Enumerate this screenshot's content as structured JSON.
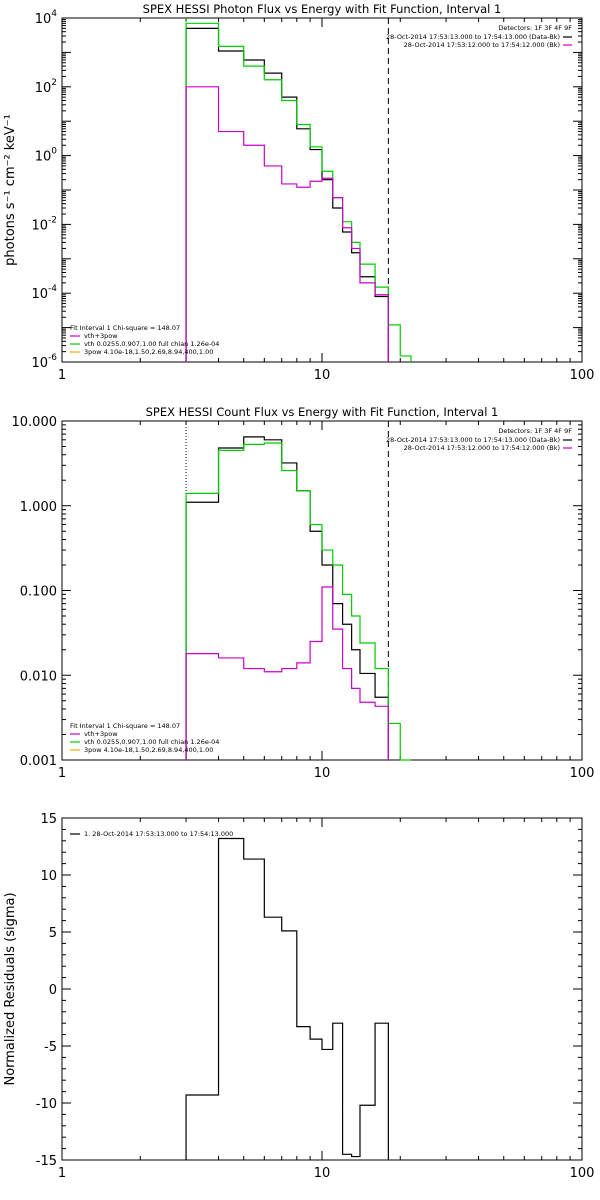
{
  "chart_data": [
    {
      "type": "line",
      "title": "SPEX HESSI Photon Flux vs Energy with Fit Function, Interval 1",
      "xlabel": "",
      "ylabel": "photons s⁻¹ cm⁻² keV⁻¹",
      "xscale": "log",
      "yscale": "log",
      "xlim": [
        1,
        100
      ],
      "ylim": [
        1e-06,
        10000
      ],
      "x_ticks": [
        {
          "v": 1,
          "label": "1"
        },
        {
          "v": 10,
          "label": "10"
        },
        {
          "v": 100,
          "label": "100"
        }
      ],
      "y_ticks": [
        {
          "v": 10000,
          "base": "10",
          "exp": "4"
        },
        {
          "v": 100,
          "base": "10",
          "exp": "2"
        },
        {
          "v": 1,
          "base": "10",
          "exp": "0"
        },
        {
          "v": 0.01,
          "base": "10",
          "exp": "-2"
        },
        {
          "v": 0.0001,
          "base": "10",
          "exp": "-4"
        },
        {
          "v": 1e-06,
          "base": "10",
          "exp": "-6"
        }
      ],
      "vlines": [
        {
          "x": 3,
          "style": "dotted",
          "color": "#00cc00"
        },
        {
          "x": 18,
          "style": "dashed",
          "color": "#000000"
        }
      ],
      "series": [
        {
          "color": "#000000",
          "steps": [
            [
              3,
              4,
              5000
            ],
            [
              4,
              5,
              1100
            ],
            [
              5,
              6,
              600
            ],
            [
              6,
              7,
              250
            ],
            [
              7,
              8,
              50
            ],
            [
              8,
              9,
              6
            ],
            [
              9,
              10,
              1.5
            ],
            [
              10,
              11,
              0.2
            ],
            [
              11,
              12,
              0.03
            ],
            [
              12,
              13,
              0.006
            ],
            [
              13,
              14,
              0.0015
            ],
            [
              14,
              16,
              0.0003
            ],
            [
              16,
              18,
              8e-05
            ]
          ]
        },
        {
          "color": "#00cc00",
          "steps": [
            [
              3,
              4,
              7000
            ],
            [
              4,
              5,
              1500
            ],
            [
              5,
              6,
              400
            ],
            [
              6,
              7,
              160
            ],
            [
              7,
              8,
              40
            ],
            [
              8,
              9,
              8
            ],
            [
              9,
              10,
              1.8
            ],
            [
              10,
              11,
              0.35
            ],
            [
              11,
              12,
              0.06
            ],
            [
              12,
              13,
              0.012
            ],
            [
              13,
              14,
              0.003
            ],
            [
              14,
              16,
              0.0007
            ],
            [
              16,
              18,
              0.00015
            ],
            [
              18,
              20,
              1.2e-05
            ],
            [
              20,
              22,
              1.5e-06
            ]
          ]
        },
        {
          "color": "#cc00cc",
          "steps": [
            [
              3,
              4,
              100
            ],
            [
              4,
              5,
              5
            ],
            [
              5,
              6,
              2
            ],
            [
              6,
              7,
              0.5
            ],
            [
              7,
              8,
              0.15
            ],
            [
              8,
              9,
              0.12
            ],
            [
              9,
              10,
              0.18
            ],
            [
              10,
              11,
              0.22
            ],
            [
              11,
              12,
              0.06
            ],
            [
              12,
              13,
              0.008
            ],
            [
              13,
              14,
              0.002
            ],
            [
              14,
              16,
              0.0002
            ],
            [
              16,
              18,
              9e-05
            ]
          ]
        }
      ],
      "legend_right": {
        "title": "Detectors: 1F 3F 4F 9F",
        "entries": [
          {
            "label": "28-Oct-2014 17:53:13.000 to 17:54:13.000 (Data-Bk)",
            "color": "#000000"
          },
          {
            "label": "28-Oct-2014 17:53:12.000 to 17:54:12.000 (Bk)",
            "color": "#cc00cc"
          }
        ]
      },
      "legend_left": {
        "title": "Fit Interval 1    Chi-square = 148.07",
        "entries": [
          {
            "label": "vth+3pow",
            "color": "#cc00cc"
          },
          {
            "label": "vth 0.0255,0.907,1.00  full chian 1.26e-04",
            "color": "#00cc00"
          },
          {
            "label": "3pow 4.10e-18,1.50,2.69,8.94,400,1.00",
            "color": "#e8b000"
          }
        ]
      }
    },
    {
      "type": "line",
      "title": "SPEX HESSI Count Flux vs Energy with Fit Function, Interval 1",
      "xlabel": "",
      "ylabel": "",
      "xscale": "log",
      "yscale": "log",
      "xlim": [
        1,
        100
      ],
      "ylim": [
        0.001,
        10
      ],
      "x_ticks": [
        {
          "v": 1,
          "label": "1"
        },
        {
          "v": 10,
          "label": "10"
        },
        {
          "v": 100,
          "label": "100"
        }
      ],
      "y_ticks": [
        {
          "v": 10,
          "label": "10.000"
        },
        {
          "v": 1,
          "label": "1.000"
        },
        {
          "v": 0.1,
          "label": "0.100"
        },
        {
          "v": 0.01,
          "label": "0.010"
        },
        {
          "v": 0.001,
          "label": "0.001"
        }
      ],
      "vlines": [
        {
          "x": 3,
          "style": "dotted",
          "color": "#000000"
        },
        {
          "x": 18,
          "style": "dashed",
          "color": "#000000"
        }
      ],
      "series": [
        {
          "color": "#000000",
          "steps": [
            [
              3,
              4,
              1.1
            ],
            [
              4,
              5,
              4.8
            ],
            [
              5,
              6,
              6.5
            ],
            [
              6,
              7,
              6.0
            ],
            [
              7,
              8,
              3.2
            ],
            [
              8,
              9,
              1.5
            ],
            [
              9,
              10,
              0.5
            ],
            [
              10,
              11,
              0.2
            ],
            [
              11,
              12,
              0.07
            ],
            [
              12,
              13,
              0.04
            ],
            [
              13,
              14,
              0.02
            ],
            [
              14,
              16,
              0.0105
            ],
            [
              16,
              18,
              0.0055
            ]
          ]
        },
        {
          "color": "#00cc00",
          "steps": [
            [
              3,
              4,
              1.4
            ],
            [
              4,
              5,
              4.5
            ],
            [
              5,
              6,
              5.3
            ],
            [
              6,
              7,
              5.5
            ],
            [
              7,
              8,
              2.6
            ],
            [
              8,
              9,
              1.5
            ],
            [
              9,
              10,
              0.6
            ],
            [
              10,
              11,
              0.3
            ],
            [
              11,
              12,
              0.2
            ],
            [
              12,
              13,
              0.09
            ],
            [
              13,
              14,
              0.05
            ],
            [
              14,
              16,
              0.024
            ],
            [
              16,
              18,
              0.012
            ],
            [
              18,
              20,
              0.0027
            ],
            [
              20,
              22,
              0.001
            ]
          ]
        },
        {
          "color": "#cc00cc",
          "steps": [
            [
              3,
              4,
              0.018
            ],
            [
              4,
              5,
              0.016
            ],
            [
              5,
              6,
              0.012
            ],
            [
              6,
              7,
              0.011
            ],
            [
              7,
              8,
              0.012
            ],
            [
              8,
              9,
              0.014
            ],
            [
              9,
              10,
              0.025
            ],
            [
              10,
              11,
              0.11
            ],
            [
              11,
              12,
              0.035
            ],
            [
              12,
              13,
              0.012
            ],
            [
              13,
              14,
              0.007
            ],
            [
              14,
              16,
              0.0048
            ],
            [
              16,
              18,
              0.0043
            ]
          ]
        }
      ],
      "legend_right": {
        "title": "Detectors: 1F 3F 4F 9F",
        "entries": [
          {
            "label": "28-Oct-2014 17:53:13.000 to 17:54:13.000 (Data-Bk)",
            "color": "#000000"
          },
          {
            "label": "28-Oct-2014 17:53:12.000 to 17:54:12.000 (Bk)",
            "color": "#cc00cc"
          }
        ]
      },
      "legend_left": {
        "title": "Fit Interval 1    Chi-square = 148.07",
        "entries": [
          {
            "label": "vth+3pow",
            "color": "#cc00cc"
          },
          {
            "label": "vth 0.0255,0.907,1.00  full chian 1.26e-04",
            "color": "#00cc00"
          },
          {
            "label": "3pow 4.10e-18,1.50,2.69,8.94,400,1.00",
            "color": "#e8b000"
          }
        ]
      }
    },
    {
      "type": "line",
      "title": "",
      "xlabel": "",
      "ylabel": "Normalized Residuals (sigma)",
      "xscale": "log",
      "yscale": "linear",
      "xlim": [
        1,
        100
      ],
      "ylim": [
        -15,
        15
      ],
      "x_ticks": [
        {
          "v": 1,
          "label": "1"
        },
        {
          "v": 10,
          "label": "10"
        },
        {
          "v": 100,
          "label": "100"
        }
      ],
      "y_ticks": [
        {
          "v": 15,
          "label": "15"
        },
        {
          "v": 10,
          "label": "10"
        },
        {
          "v": 5,
          "label": "5"
        },
        {
          "v": 0,
          "label": "0"
        },
        {
          "v": -5,
          "label": "-5"
        },
        {
          "v": -10,
          "label": "-10"
        },
        {
          "v": -15,
          "label": "-15"
        }
      ],
      "vlines": [],
      "series": [
        {
          "color": "#000000",
          "steps": [
            [
              3,
              4,
              -9.3
            ],
            [
              4,
              5,
              13.2
            ],
            [
              5,
              6,
              11.4
            ],
            [
              6,
              7,
              6.3
            ],
            [
              7,
              8,
              5.1
            ],
            [
              8,
              9,
              -3.3
            ],
            [
              9,
              10,
              -4.4
            ],
            [
              10,
              11,
              -5.3
            ],
            [
              11,
              12,
              -3.0
            ],
            [
              12,
              13,
              -14.5
            ],
            [
              13,
              14,
              -14.7
            ],
            [
              14,
              16,
              -10.2
            ],
            [
              16,
              18,
              -3.0
            ]
          ],
          "drop_to_bottom": true
        }
      ],
      "legend_left": {
        "title": "",
        "entries": [
          {
            "label": "1. 28-Oct-2014 17:53:13.000 to 17:54:13.000",
            "color": "#000000"
          }
        ]
      }
    }
  ]
}
